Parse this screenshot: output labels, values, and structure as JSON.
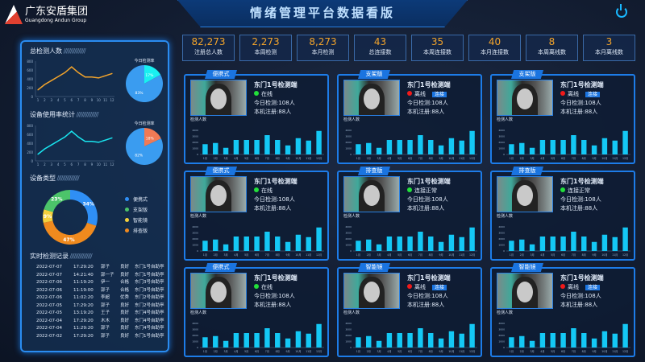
{
  "header": {
    "title": "情绪管理平台数据看版",
    "logo_cn": "广东安盾集团",
    "logo_en": "Guangdong Andun Group"
  },
  "stats": [
    {
      "value": "82,273",
      "label": "注册总人数"
    },
    {
      "value": "2,273",
      "label": "本周检测"
    },
    {
      "value": "8,273",
      "label": "本月检测"
    },
    {
      "value": "43",
      "label": "总连接数"
    },
    {
      "value": "35",
      "label": "本周连接数"
    },
    {
      "value": "40",
      "label": "本月连接数"
    },
    {
      "value": "8",
      "label": "本周离线数"
    },
    {
      "value": "3",
      "label": "本月离线数"
    }
  ],
  "left": {
    "total_title": "总检测人数",
    "usage_title": "设备使用率统计",
    "type_title": "设备类型",
    "records_title": "实时检测记录",
    "pie_title": "今日检测率",
    "chart_data": [
      {
        "type": "line",
        "x": [
          "1",
          "2",
          "3",
          "4",
          "5",
          "6",
          "7",
          "8",
          "9",
          "10",
          "11",
          "12"
        ],
        "values": [
          150,
          270,
          360,
          450,
          540,
          670,
          540,
          440,
          440,
          420,
          470,
          520
        ],
        "ylim": [
          0,
          800
        ],
        "yticks": [
          "0",
          "200",
          "400",
          "600",
          "800"
        ],
        "color": "#f3a42b"
      },
      {
        "type": "pie",
        "values": [
          17,
          83
        ],
        "labels": [
          "17%",
          "83%"
        ],
        "colors": [
          "#19f0f0",
          "#3a9cf0"
        ]
      },
      {
        "type": "line",
        "x": [
          "1",
          "2",
          "3",
          "4",
          "5",
          "6",
          "7",
          "8",
          "9",
          "10",
          "11",
          "12"
        ],
        "values": [
          150,
          270,
          360,
          450,
          540,
          670,
          540,
          440,
          440,
          420,
          470,
          520
        ],
        "ylim": [
          0,
          800
        ],
        "yticks": [
          "0",
          "200",
          "400",
          "600",
          "800"
        ],
        "color": "#19e6f0"
      },
      {
        "type": "pie",
        "values": [
          18,
          82
        ],
        "labels": [
          "18%",
          "82%"
        ],
        "colors": [
          "#f07a55",
          "#3a9cf0"
        ]
      },
      {
        "type": "pie",
        "donut": true,
        "categories": [
          "便携式",
          "支架版",
          "智能镜",
          "排查版"
        ],
        "labels": [
          "34%",
          "23%",
          "9%",
          "47%"
        ],
        "values": [
          34,
          23,
          9,
          47
        ],
        "colors": [
          "#2f8ff5",
          "#4cc46a",
          "#f5d03c",
          "#f08a1e"
        ]
      }
    ],
    "records": [
      [
        "2022-07-07",
        "17:29:20",
        "郭子",
        "良好",
        "东门1号自助亭"
      ],
      [
        "2022-07-07",
        "14:21:40",
        "郭一子",
        "良好",
        "东门1号自助亭"
      ],
      [
        "2022-07-06",
        "11:19:20",
        "伊一",
        "合格",
        "东门3号自助亭"
      ],
      [
        "2022-07-06",
        "11:19:00",
        "郭子",
        "合格",
        "东门3号自助亭"
      ],
      [
        "2022-07-06",
        "11:02:20",
        "李超",
        "优秀",
        "东门2号自助亭"
      ],
      [
        "2022-07-05",
        "17:29:20",
        "郭子",
        "良好",
        "东门2号自助亭"
      ],
      [
        "2022-07-05",
        "13:19:20",
        "王子",
        "良好",
        "东门4号自助亭"
      ],
      [
        "2022-07-04",
        "17:29:20",
        "木木",
        "良好",
        "东门4号自助亭"
      ],
      [
        "2022-07-04",
        "11:29:20",
        "郭子",
        "良好",
        "东门4号自助亭"
      ],
      [
        "2022-07-02",
        "17:29:20",
        "郭子",
        "良好",
        "东门1号自助亭"
      ]
    ]
  },
  "device_chart": {
    "type": "bar",
    "title": "检测人数",
    "categories": [
      "1月",
      "2月",
      "3月",
      "4月",
      "5月",
      "6月",
      "7月",
      "8月",
      "9月",
      "10月",
      "11月",
      "12月"
    ],
    "values": [
      1700,
      1900,
      1100,
      2400,
      2400,
      2400,
      3200,
      2400,
      1500,
      2700,
      2300,
      3900
    ],
    "ylim": [
      0,
      4000
    ],
    "yticks": [
      "0",
      "1000",
      "2000",
      "3000",
      "4000"
    ],
    "color": "#14c8f5"
  },
  "devices": [
    {
      "tag": "便携式",
      "name": "东门1号检测端",
      "status": "在线",
      "online": true,
      "today": "今日检测:108人",
      "reg": "本机注册:88人"
    },
    {
      "tag": "支架版",
      "name": "东门1号检测端",
      "status": "离线",
      "online": false,
      "connect": "连接",
      "today": "今日检测:108人",
      "reg": "本机注册:88人"
    },
    {
      "tag": "支架版",
      "name": "东门1号检测端",
      "status": "离线",
      "online": false,
      "connect": "连接",
      "today": "今日检测:108人",
      "reg": "本机注册:88人"
    },
    {
      "tag": "便携式",
      "name": "东门1号检测端",
      "status": "在线",
      "online": true,
      "today": "今日检测:108人",
      "reg": "本机注册:88人"
    },
    {
      "tag": "排查版",
      "name": "东门1号检测端",
      "status": "连接正常",
      "online": true,
      "today": "今日检测:108人",
      "reg": "本机注册:88人"
    },
    {
      "tag": "排查版",
      "name": "东门1号检测端",
      "status": "连接正常",
      "online": true,
      "today": "今日检测:108人",
      "reg": "本机注册:88人"
    },
    {
      "tag": "便携式",
      "name": "东门1号检测端",
      "status": "在线",
      "online": true,
      "today": "今日检测:108人",
      "reg": "本机注册:88人"
    },
    {
      "tag": "智能镜",
      "name": "东门1号检测端",
      "status": "离线",
      "online": false,
      "connect": "连接",
      "today": "今日检测:108人",
      "reg": "本机注册:88人"
    },
    {
      "tag": "智能镜",
      "name": "东门1号检测端",
      "status": "离线",
      "online": false,
      "connect": "连接",
      "today": "今日检测:108人",
      "reg": "本机注册:88人"
    }
  ],
  "colors": {
    "online": "#22e03a",
    "offline": "#f01a1a",
    "accent": "#1d7ce8",
    "stat_value": "#f3a42b"
  }
}
